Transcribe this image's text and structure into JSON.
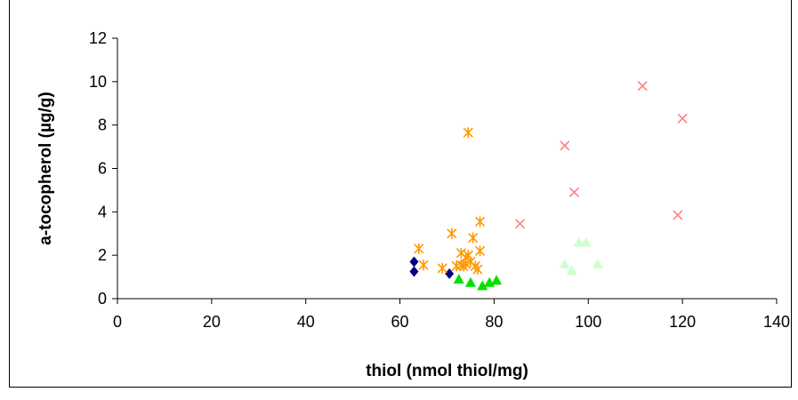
{
  "chart_data": {
    "type": "scatter",
    "title": "",
    "xlabel": "thiol (nmol thiol/mg)",
    "ylabel": "a-tocopherol (µg/g)",
    "xlim": [
      0,
      140
    ],
    "ylim": [
      0,
      12
    ],
    "x_ticks": [
      "0",
      "20",
      "40",
      "60",
      "80",
      "100",
      "120",
      "140"
    ],
    "y_ticks": [
      "0",
      "2",
      "4",
      "6",
      "8",
      "10",
      "12"
    ],
    "grid": false,
    "legend": "none",
    "series": [
      {
        "marker": "diamond",
        "color": "#000080",
        "points": [
          [
            63,
            1.7
          ],
          [
            63,
            1.25
          ],
          [
            70.5,
            1.15
          ]
        ]
      },
      {
        "marker": "triangle",
        "color": "#00e000",
        "points": [
          [
            72.5,
            0.9
          ],
          [
            75,
            0.75
          ],
          [
            77.5,
            0.6
          ],
          [
            79,
            0.75
          ],
          [
            80.5,
            0.85
          ]
        ]
      },
      {
        "marker": "asterisk",
        "color": "#ff9900",
        "points": [
          [
            64,
            2.3
          ],
          [
            65,
            1.55
          ],
          [
            69,
            1.4
          ],
          [
            71,
            3.0
          ],
          [
            72,
            1.5
          ],
          [
            73,
            1.55
          ],
          [
            73,
            2.1
          ],
          [
            73.5,
            1.5
          ],
          [
            74,
            1.9
          ],
          [
            74,
            1.6
          ],
          [
            74.5,
            2.0
          ],
          [
            74.5,
            7.65
          ],
          [
            75,
            1.7
          ],
          [
            75.5,
            2.8
          ],
          [
            76,
            1.5
          ],
          [
            76.5,
            1.35
          ],
          [
            77,
            2.2
          ],
          [
            77,
            3.55
          ]
        ]
      },
      {
        "marker": "x",
        "color": "#ff8080",
        "points": [
          [
            85.5,
            3.45
          ],
          [
            95,
            7.05
          ],
          [
            97,
            4.9
          ],
          [
            111.5,
            9.8
          ],
          [
            119,
            3.85
          ],
          [
            120,
            8.3
          ]
        ]
      },
      {
        "marker": "triangle",
        "color": "#ccffcc",
        "points": [
          [
            95,
            1.6
          ],
          [
            96.5,
            1.3
          ],
          [
            98,
            2.6
          ],
          [
            99.5,
            2.6
          ],
          [
            102,
            1.6
          ]
        ]
      }
    ]
  }
}
